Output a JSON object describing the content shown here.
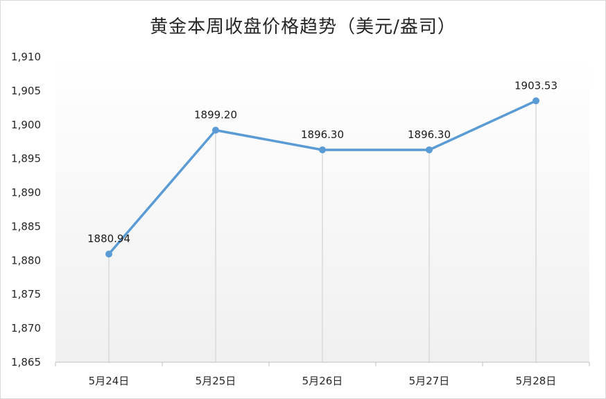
{
  "chart_data": {
    "type": "line",
    "title": "黄金本周收盘价格趋势（美元/盎司）",
    "categories": [
      "5月24日",
      "5月25日",
      "5月26日",
      "5月27日",
      "5月28日"
    ],
    "series": [
      {
        "values": [
          1880.94,
          1899.2,
          1896.3,
          1896.3,
          1903.53
        ]
      }
    ],
    "data_labels": [
      "1880.94",
      "1899.20",
      "1896.30",
      "1896.30",
      "1903.53"
    ],
    "ylim": [
      1865,
      1910
    ],
    "yticks": [
      1865,
      1870,
      1875,
      1880,
      1885,
      1890,
      1895,
      1900,
      1905,
      1910
    ],
    "ytick_labels": [
      "1,865",
      "1,870",
      "1,875",
      "1,880",
      "1,885",
      "1,890",
      "1,895",
      "1,900",
      "1,905",
      "1,910"
    ],
    "xlabel": "",
    "ylabel": "",
    "grid": "vertical drop lines",
    "legend": "none",
    "colors": {
      "line": "#5b9bd5",
      "marker": "#5b9bd5",
      "droplines": "#d9d9d9",
      "plot_bg_bottom": "#f2f2f2"
    }
  }
}
